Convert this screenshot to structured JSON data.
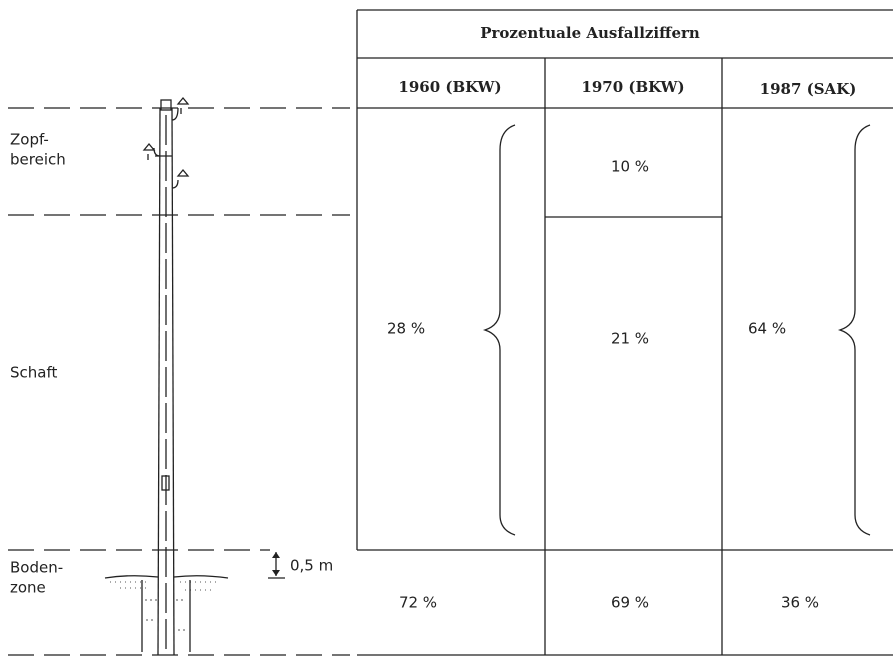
{
  "zones": {
    "top": [
      "Zopf-",
      "bereich"
    ],
    "shaft": "Schaft",
    "ground": [
      "Boden-",
      "zone"
    ],
    "depth": "0,5 m"
  },
  "table": {
    "title": "Prozentuale Ausfallziffern",
    "headers": [
      "1960 (BKW)",
      "1970 (BKW)",
      "1987 (SAK)"
    ],
    "upper_values": [
      [
        "28 %"
      ],
      [
        "10 %",
        "21 %"
      ],
      [
        "64 %"
      ]
    ],
    "ground_values": [
      "72 %",
      "69 %",
      "36 %"
    ]
  }
}
